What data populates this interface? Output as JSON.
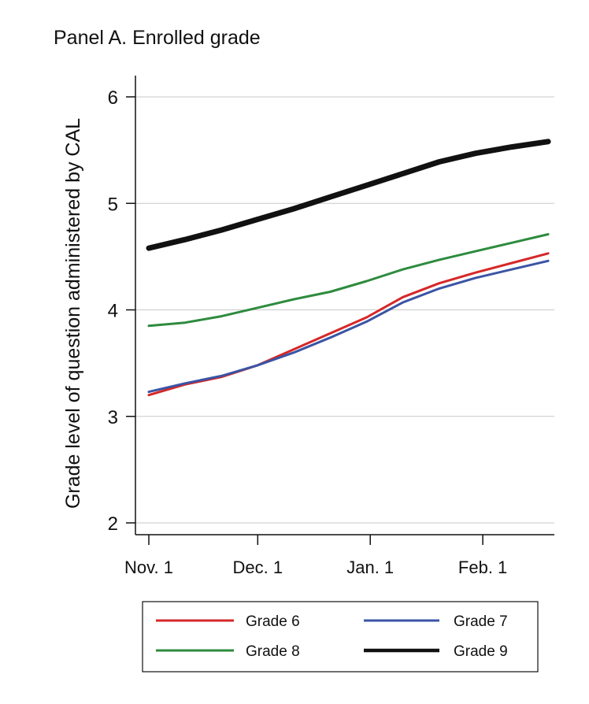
{
  "chart_data": {
    "type": "line",
    "title": "Panel A. Enrolled grade",
    "xlabel": "",
    "ylabel": "Grade level of question administered by CAL",
    "ylim": [
      2,
      6
    ],
    "yticks": [
      2,
      3,
      4,
      5,
      6
    ],
    "xticks": [
      {
        "label": "Nov. 1",
        "day": 0
      },
      {
        "label": "Dec. 1",
        "day": 30
      },
      {
        "label": "Jan. 1",
        "day": 61
      },
      {
        "label": "Feb. 1",
        "day": 92
      }
    ],
    "xlim_days": [
      -3,
      113
    ],
    "grid": true,
    "legend_position": "bottom",
    "series": [
      {
        "name": "Grade 6",
        "color": "#d62728",
        "width": 3,
        "x": [
          0,
          10,
          20,
          30,
          40,
          50,
          60,
          70,
          80,
          90,
          100,
          110
        ],
        "y": [
          3.2,
          3.3,
          3.37,
          3.48,
          3.63,
          3.78,
          3.93,
          4.12,
          4.25,
          4.35,
          4.44,
          4.53
        ]
      },
      {
        "name": "Grade 7",
        "color": "#3a54a4",
        "width": 3,
        "x": [
          0,
          10,
          20,
          30,
          40,
          50,
          60,
          70,
          80,
          90,
          100,
          110
        ],
        "y": [
          3.23,
          3.31,
          3.38,
          3.48,
          3.6,
          3.74,
          3.89,
          4.07,
          4.2,
          4.3,
          4.38,
          4.46
        ]
      },
      {
        "name": "Grade 8",
        "color": "#2e8b3e",
        "width": 3,
        "x": [
          0,
          10,
          20,
          30,
          40,
          50,
          60,
          70,
          80,
          90,
          100,
          110
        ],
        "y": [
          3.85,
          3.88,
          3.94,
          4.02,
          4.1,
          4.17,
          4.27,
          4.38,
          4.47,
          4.55,
          4.63,
          4.71
        ]
      },
      {
        "name": "Grade 9",
        "color": "#111111",
        "width": 7,
        "x": [
          0,
          10,
          20,
          30,
          40,
          50,
          60,
          70,
          80,
          90,
          100,
          110
        ],
        "y": [
          4.58,
          4.66,
          4.75,
          4.85,
          4.95,
          5.06,
          5.17,
          5.28,
          5.39,
          5.47,
          5.53,
          5.58
        ]
      }
    ]
  }
}
